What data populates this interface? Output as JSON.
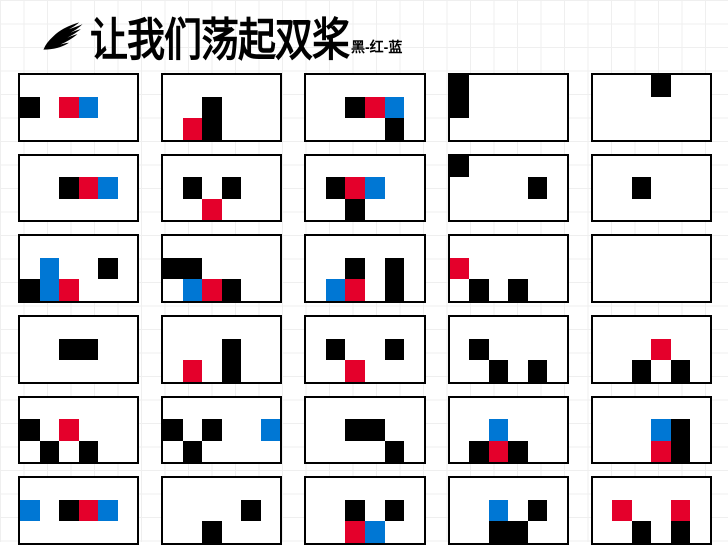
{
  "header": {
    "title": "让我们荡起双桨",
    "subtitle": "黑-红-蓝"
  },
  "colors": {
    "black": "#000000",
    "red": "#e4002b",
    "blue": "#0077d4",
    "border": "#000000",
    "background": "#ffffff",
    "gridline": "#e0e0e0"
  },
  "board": {
    "rows": 6,
    "cols": 5,
    "cell_rows": 3,
    "cell_cols": 6
  },
  "cells": [
    [
      [
        {
          "r": 1,
          "c": 0,
          "k": "black"
        },
        {
          "r": 1,
          "c": 2,
          "k": "red"
        },
        {
          "r": 1,
          "c": 3,
          "k": "blue"
        }
      ],
      [
        {
          "r": 1,
          "c": 2,
          "k": "black"
        },
        {
          "r": 2,
          "c": 1,
          "k": "red"
        },
        {
          "r": 2,
          "c": 2,
          "k": "black"
        }
      ],
      [
        {
          "r": 1,
          "c": 2,
          "k": "black"
        },
        {
          "r": 1,
          "c": 3,
          "k": "red"
        },
        {
          "r": 1,
          "c": 4,
          "k": "blue"
        },
        {
          "r": 2,
          "c": 4,
          "k": "black"
        }
      ],
      [
        {
          "r": 0,
          "c": 0,
          "k": "black"
        },
        {
          "r": 1,
          "c": 0,
          "k": "black"
        }
      ],
      [
        {
          "r": 0,
          "c": 3,
          "k": "black"
        }
      ]
    ],
    [
      [
        {
          "r": 1,
          "c": 2,
          "k": "black"
        },
        {
          "r": 1,
          "c": 3,
          "k": "red"
        },
        {
          "r": 1,
          "c": 4,
          "k": "blue"
        }
      ],
      [
        {
          "r": 1,
          "c": 1,
          "k": "black"
        },
        {
          "r": 2,
          "c": 2,
          "k": "red"
        },
        {
          "r": 1,
          "c": 3,
          "k": "black"
        }
      ],
      [
        {
          "r": 1,
          "c": 1,
          "k": "black"
        },
        {
          "r": 1,
          "c": 2,
          "k": "red"
        },
        {
          "r": 2,
          "c": 2,
          "k": "black"
        },
        {
          "r": 1,
          "c": 3,
          "k": "blue"
        }
      ],
      [
        {
          "r": 0,
          "c": 0,
          "k": "black"
        },
        {
          "r": 1,
          "c": 4,
          "k": "black"
        }
      ],
      [
        {
          "r": 1,
          "c": 2,
          "k": "black"
        }
      ]
    ],
    [
      [
        {
          "r": 2,
          "c": 0,
          "k": "black"
        },
        {
          "r": 1,
          "c": 1,
          "k": "blue"
        },
        {
          "r": 2,
          "c": 1,
          "k": "blue"
        },
        {
          "r": 2,
          "c": 2,
          "k": "red"
        },
        {
          "r": 1,
          "c": 4,
          "k": "black"
        }
      ],
      [
        {
          "r": 1,
          "c": 0,
          "k": "black"
        },
        {
          "r": 1,
          "c": 1,
          "k": "black"
        },
        {
          "r": 2,
          "c": 1,
          "k": "blue"
        },
        {
          "r": 2,
          "c": 2,
          "k": "red"
        },
        {
          "r": 2,
          "c": 3,
          "k": "black"
        }
      ],
      [
        {
          "r": 2,
          "c": 1,
          "k": "blue"
        },
        {
          "r": 1,
          "c": 2,
          "k": "black"
        },
        {
          "r": 2,
          "c": 2,
          "k": "red"
        },
        {
          "r": 1,
          "c": 4,
          "k": "black"
        },
        {
          "r": 2,
          "c": 4,
          "k": "black"
        }
      ],
      [
        {
          "r": 1,
          "c": 0,
          "k": "red"
        },
        {
          "r": 2,
          "c": 1,
          "k": "black"
        },
        {
          "r": 2,
          "c": 3,
          "k": "black"
        }
      ],
      []
    ],
    [
      [
        {
          "r": 1,
          "c": 2,
          "k": "black"
        },
        {
          "r": 1,
          "c": 3,
          "k": "black"
        }
      ],
      [
        {
          "r": 2,
          "c": 1,
          "k": "red"
        },
        {
          "r": 1,
          "c": 3,
          "k": "black"
        },
        {
          "r": 2,
          "c": 3,
          "k": "black"
        }
      ],
      [
        {
          "r": 1,
          "c": 1,
          "k": "black"
        },
        {
          "r": 2,
          "c": 2,
          "k": "red"
        },
        {
          "r": 1,
          "c": 4,
          "k": "black"
        }
      ],
      [
        {
          "r": 1,
          "c": 1,
          "k": "black"
        },
        {
          "r": 2,
          "c": 2,
          "k": "black"
        },
        {
          "r": 2,
          "c": 4,
          "k": "black"
        }
      ],
      [
        {
          "r": 1,
          "c": 3,
          "k": "red"
        },
        {
          "r": 2,
          "c": 2,
          "k": "black"
        },
        {
          "r": 2,
          "c": 4,
          "k": "black"
        }
      ]
    ],
    [
      [
        {
          "r": 1,
          "c": 0,
          "k": "black"
        },
        {
          "r": 1,
          "c": 2,
          "k": "red"
        },
        {
          "r": 2,
          "c": 1,
          "k": "black"
        },
        {
          "r": 2,
          "c": 3,
          "k": "black"
        }
      ],
      [
        {
          "r": 1,
          "c": 0,
          "k": "black"
        },
        {
          "r": 1,
          "c": 2,
          "k": "black"
        },
        {
          "r": 2,
          "c": 1,
          "k": "black"
        },
        {
          "r": 1,
          "c": 5,
          "k": "blue"
        }
      ],
      [
        {
          "r": 1,
          "c": 2,
          "k": "black"
        },
        {
          "r": 1,
          "c": 3,
          "k": "black"
        },
        {
          "r": 2,
          "c": 4,
          "k": "black"
        }
      ],
      [
        {
          "r": 1,
          "c": 2,
          "k": "blue"
        },
        {
          "r": 2,
          "c": 1,
          "k": "black"
        },
        {
          "r": 2,
          "c": 2,
          "k": "red"
        },
        {
          "r": 2,
          "c": 3,
          "k": "black"
        }
      ],
      [
        {
          "r": 1,
          "c": 3,
          "k": "blue"
        },
        {
          "r": 1,
          "c": 4,
          "k": "black"
        },
        {
          "r": 2,
          "c": 3,
          "k": "red"
        },
        {
          "r": 2,
          "c": 4,
          "k": "black"
        }
      ]
    ],
    [
      [
        {
          "r": 1,
          "c": 0,
          "k": "blue"
        },
        {
          "r": 1,
          "c": 2,
          "k": "black"
        },
        {
          "r": 1,
          "c": 3,
          "k": "red"
        },
        {
          "r": 1,
          "c": 4,
          "k": "blue"
        }
      ],
      [
        {
          "r": 2,
          "c": 2,
          "k": "black"
        },
        {
          "r": 1,
          "c": 4,
          "k": "black"
        }
      ],
      [
        {
          "r": 1,
          "c": 2,
          "k": "black"
        },
        {
          "r": 2,
          "c": 2,
          "k": "red"
        },
        {
          "r": 2,
          "c": 3,
          "k": "blue"
        },
        {
          "r": 1,
          "c": 4,
          "k": "black"
        }
      ],
      [
        {
          "r": 1,
          "c": 2,
          "k": "blue"
        },
        {
          "r": 2,
          "c": 2,
          "k": "black"
        },
        {
          "r": 2,
          "c": 3,
          "k": "black"
        },
        {
          "r": 1,
          "c": 4,
          "k": "black"
        }
      ],
      [
        {
          "r": 1,
          "c": 1,
          "k": "red"
        },
        {
          "r": 2,
          "c": 2,
          "k": "black"
        },
        {
          "r": 1,
          "c": 4,
          "k": "red"
        },
        {
          "r": 2,
          "c": 4,
          "k": "black"
        }
      ]
    ]
  ]
}
